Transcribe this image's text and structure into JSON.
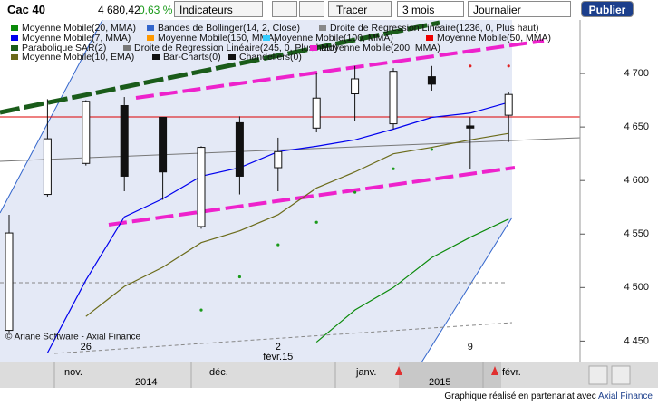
{
  "header": {
    "symbol": "Cac 40",
    "price": "4 680,42",
    "change": "0,63 %",
    "indicators_button": "Indicateurs",
    "draw_button": "Tracer",
    "period": "3 mois",
    "interval": "Journalier",
    "publish_button": "Publier"
  },
  "chart_data": {
    "type": "candlestick",
    "categories": [
      null,
      null,
      "26",
      null,
      null,
      null,
      null,
      "2\nfévr.15",
      null,
      null,
      null,
      null,
      "9",
      null
    ],
    "open": [
      4460,
      4587,
      4616,
      4670,
      4659,
      4557,
      4654,
      4612,
      4649,
      4681,
      4653,
      4697,
      4651,
      4661
    ],
    "high": [
      4568,
      4676,
      4675,
      4678,
      4659,
      4632,
      4660,
      4640,
      4700,
      4707,
      4705,
      4707,
      4659,
      4683
    ],
    "low": [
      4458,
      4585,
      4614,
      4590,
      4582,
      4555,
      4587,
      4590,
      4645,
      4656,
      4648,
      4684,
      4611,
      4636
    ],
    "close": [
      4551,
      4639,
      4674,
      4604,
      4608,
      4631,
      4604,
      4627,
      4677,
      4695,
      4702,
      4690,
      4649,
      4680.42
    ],
    "ylim": [
      4430,
      4750
    ],
    "yticks": [
      {
        "value": 4450,
        "label": "4 450"
      },
      {
        "value": 4500,
        "label": "4 500"
      },
      {
        "value": 4550,
        "label": "4 550"
      },
      {
        "value": 4600,
        "label": "4 600"
      },
      {
        "value": 4650,
        "label": "4 650"
      },
      {
        "value": 4700,
        "label": "4 700"
      }
    ],
    "series": [
      {
        "name": "Moyenne Mobile(20, MMA)",
        "color": "#0a8a0a",
        "values": [
          null,
          null,
          null,
          null,
          null,
          null,
          null,
          null,
          4449,
          4479,
          4500,
          4528,
          4547,
          4564
        ]
      },
      {
        "name": "Bandes de Bollinger(14, 2, Close)",
        "color": "#3366cc"
      },
      {
        "name": "Droite de Regression Linéaire(1236, 0, Plus haut)",
        "color": "#888888"
      },
      {
        "name": "Moyenne Mobile(7, MMA)",
        "color": "#0000ee",
        "values": [
          null,
          4439,
          4507,
          4566,
          4583,
          4604,
          4612,
          4627,
          4632,
          4638,
          4648,
          4659,
          4663,
          4673
        ]
      },
      {
        "name": "Moyenne Mobile(150, MMA)",
        "color": "#ff9900"
      },
      {
        "name": "Moyenne Mobile(100, MMA)",
        "color": "#33ccff"
      },
      {
        "name": "Moyenne Mobile(50, MMA)",
        "color": "#ee0000"
      },
      {
        "name": "Parabolique SAR(2)",
        "color": "#1a5c1a",
        "values": [
          null,
          null,
          null,
          null,
          null,
          4479,
          4510,
          4540,
          4561,
          4589,
          4611,
          4629,
          4707,
          4707
        ]
      },
      {
        "name": "Droite de Regression Linéaire(245, 0, Plus haut)",
        "color": "#777777"
      },
      {
        "name": "Moyenne Mobile(200, MMA)",
        "color": "#ee22cc"
      },
      {
        "name": "Moyenne Mobile(10, EMA)",
        "color": "#6b6b1a",
        "values": [
          null,
          null,
          4473,
          4501,
          4519,
          4542,
          4553,
          4568,
          4593,
          4608,
          4625,
          4631,
          4638,
          4644
        ]
      },
      {
        "name": "Bar-Charts(0)",
        "color": "#111111"
      },
      {
        "name": "Chandeliers(0)",
        "color": "#111111"
      }
    ]
  },
  "copyright": "© Ariane Software - Axial Finance",
  "timeline": {
    "months": [
      "nov.",
      "déc.",
      "janv.",
      "févr."
    ],
    "years": [
      "2014",
      "2015"
    ]
  },
  "footer": {
    "text": "Graphique réalisé en partenariat avec",
    "link": "Axial Finance"
  }
}
